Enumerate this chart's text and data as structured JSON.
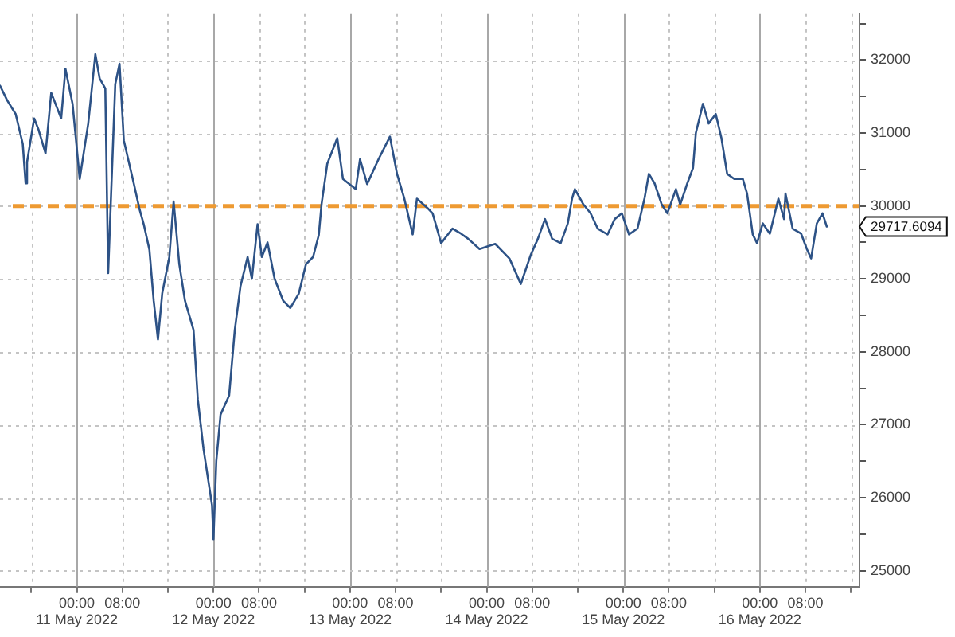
{
  "chart_data": {
    "type": "line",
    "x": [
      "2022-05-10T10:30",
      "2022-05-10T11:45",
      "2022-05-10T13:15",
      "2022-05-10T14:30",
      "2022-05-10T15:00",
      "2022-05-10T15:15",
      "2022-05-10T16:30",
      "2022-05-10T17:15",
      "2022-05-10T18:30",
      "2022-05-10T19:30",
      "2022-05-10T21:15",
      "2022-05-10T22:00",
      "2022-05-10T23:15",
      "2022-05-11T00:30",
      "2022-05-11T02:00",
      "2022-05-11T03:15",
      "2022-05-11T04:00",
      "2022-05-11T05:00",
      "2022-05-11T05:30",
      "2022-05-11T06:45",
      "2022-05-11T07:30",
      "2022-05-11T08:15",
      "2022-05-11T10:00",
      "2022-05-11T11:00",
      "2022-05-11T11:45",
      "2022-05-11T12:45",
      "2022-05-11T13:30",
      "2022-05-11T14:15",
      "2022-05-11T15:00",
      "2022-05-11T16:15",
      "2022-05-11T17:00",
      "2022-05-11T18:00",
      "2022-05-11T19:00",
      "2022-05-11T20:30",
      "2022-05-11T21:15",
      "2022-05-11T22:15",
      "2022-05-11T23:45",
      "2022-05-12T00:00",
      "2022-05-12T00:30",
      "2022-05-12T01:15",
      "2022-05-12T02:45",
      "2022-05-12T03:45",
      "2022-05-12T04:45",
      "2022-05-12T06:00",
      "2022-05-12T06:45",
      "2022-05-12T07:45",
      "2022-05-12T08:30",
      "2022-05-12T09:30",
      "2022-05-12T10:45",
      "2022-05-12T12:15",
      "2022-05-12T13:30",
      "2022-05-12T15:00",
      "2022-05-12T16:15",
      "2022-05-12T17:30",
      "2022-05-12T18:30",
      "2022-05-12T19:00",
      "2022-05-12T20:00",
      "2022-05-12T21:45",
      "2022-05-12T22:45",
      "2022-05-13T01:00",
      "2022-05-13T01:45",
      "2022-05-13T03:00",
      "2022-05-13T05:00",
      "2022-05-13T07:00",
      "2022-05-13T08:15",
      "2022-05-13T09:30",
      "2022-05-13T11:00",
      "2022-05-13T11:45",
      "2022-05-13T13:45",
      "2022-05-13T14:30",
      "2022-05-13T16:00",
      "2022-05-13T18:00",
      "2022-05-13T19:30",
      "2022-05-13T20:45",
      "2022-05-13T22:45",
      "2022-05-14T01:30",
      "2022-05-14T04:00",
      "2022-05-14T06:00",
      "2022-05-14T07:45",
      "2022-05-14T09:00",
      "2022-05-14T10:15",
      "2022-05-14T11:30",
      "2022-05-14T13:00",
      "2022-05-14T14:15",
      "2022-05-14T15:00",
      "2022-05-14T15:30",
      "2022-05-14T17:00",
      "2022-05-14T18:15",
      "2022-05-14T19:30",
      "2022-05-14T21:15",
      "2022-05-14T22:30",
      "2022-05-14T23:45",
      "2022-05-15T01:00",
      "2022-05-15T02:30",
      "2022-05-15T03:45",
      "2022-05-15T04:30",
      "2022-05-15T05:30",
      "2022-05-15T06:45",
      "2022-05-15T07:45",
      "2022-05-15T09:15",
      "2022-05-15T10:00",
      "2022-05-15T11:15",
      "2022-05-15T12:15",
      "2022-05-15T12:45",
      "2022-05-15T14:00",
      "2022-05-15T15:00",
      "2022-05-15T16:15",
      "2022-05-15T17:15",
      "2022-05-15T18:15",
      "2022-05-15T19:30",
      "2022-05-15T21:00",
      "2022-05-15T21:45",
      "2022-05-15T22:45",
      "2022-05-15T23:30",
      "2022-05-16T00:30",
      "2022-05-16T01:45",
      "2022-05-16T03:15",
      "2022-05-16T04:15",
      "2022-05-16T04:30",
      "2022-05-16T05:45",
      "2022-05-16T07:15",
      "2022-05-16T08:15",
      "2022-05-16T09:00",
      "2022-05-16T10:00",
      "2022-05-16T11:00",
      "2022-05-16T11:45"
    ],
    "series": [
      {
        "color": "#2d5286",
        "values": [
          31650,
          31450,
          31260,
          30850,
          30310,
          30600,
          31200,
          31050,
          30720,
          31550,
          31200,
          31880,
          31400,
          30370,
          31130,
          32080,
          31750,
          31610,
          29080,
          31670,
          31950,
          30900,
          30310,
          29960,
          29750,
          29400,
          28700,
          28170,
          28800,
          29300,
          30060,
          29200,
          28700,
          28300,
          27350,
          26670,
          25900,
          25430,
          26500,
          27140,
          27400,
          28300,
          28900,
          29300,
          29000,
          29750,
          29300,
          29500,
          29000,
          28700,
          28600,
          28800,
          29200,
          29300,
          29600,
          30030,
          30580,
          30930,
          30370,
          30230,
          30640,
          30300,
          30640,
          30950,
          30440,
          30110,
          29610,
          30100,
          29960,
          29900,
          29490,
          29690,
          29620,
          29550,
          29410,
          29480,
          29280,
          28930,
          29330,
          29550,
          29820,
          29550,
          29490,
          29760,
          30100,
          30230,
          30020,
          29900,
          29690,
          29610,
          29820,
          29900,
          29610,
          29690,
          30110,
          30440,
          30310,
          30020,
          29900,
          30230,
          30020,
          30310,
          30520,
          31000,
          31400,
          31130,
          31260,
          30930,
          30440,
          30370,
          30370,
          30170,
          29610,
          29490,
          29760,
          29620,
          30100,
          29820,
          30170,
          29690,
          29620,
          29410,
          29280,
          29760,
          29900,
          29717.6094
        ]
      }
    ],
    "xlim": [
      "2022-05-10T10:30",
      "2022-05-16T17:30"
    ],
    "xticks": [
      {
        "value": "2022-05-10T16:00",
        "label": null
      },
      {
        "value": "2022-05-11T00:00",
        "label": "00:00\n11 May 2022"
      },
      {
        "value": "2022-05-11T08:00",
        "label": "08:00"
      },
      {
        "value": "2022-05-11T16:00",
        "label": null
      },
      {
        "value": "2022-05-12T00:00",
        "label": "00:00\n12 May 2022"
      },
      {
        "value": "2022-05-12T08:00",
        "label": "08:00"
      },
      {
        "value": "2022-05-12T16:00",
        "label": null
      },
      {
        "value": "2022-05-13T00:00",
        "label": "00:00\n13 May 2022"
      },
      {
        "value": "2022-05-13T08:00",
        "label": "08:00"
      },
      {
        "value": "2022-05-13T16:00",
        "label": null
      },
      {
        "value": "2022-05-14T00:00",
        "label": "00:00\n14 May 2022"
      },
      {
        "value": "2022-05-14T08:00",
        "label": "08:00"
      },
      {
        "value": "2022-05-14T16:00",
        "label": null
      },
      {
        "value": "2022-05-15T00:00",
        "label": "00:00\n15 May 2022"
      },
      {
        "value": "2022-05-15T08:00",
        "label": "08:00"
      },
      {
        "value": "2022-05-15T16:00",
        "label": null
      },
      {
        "value": "2022-05-16T00:00",
        "label": "00:00\n16 May 2022"
      },
      {
        "value": "2022-05-16T08:00",
        "label": "08:00"
      },
      {
        "value": "2022-05-16T16:00",
        "label": null
      }
    ],
    "ylim": [
      24780,
      32640
    ],
    "yticks": [
      25000,
      {
        "value": 25500,
        "label": null
      },
      26000,
      {
        "value": 26500,
        "label": null
      },
      27000,
      {
        "value": 27500,
        "label": null
      },
      28000,
      {
        "value": 28500,
        "label": null
      },
      29000,
      {
        "value": 29500,
        "label": null
      },
      30000,
      {
        "value": 30500,
        "label": null
      },
      31000,
      {
        "value": 31500,
        "label": null
      },
      32000,
      {
        "value": 32500,
        "label": null
      }
    ],
    "ref_lines": [
      {
        "axis": "y",
        "value": 30000,
        "color": "#ee9a32",
        "line_style": "dashed"
      }
    ],
    "annotations": [
      "29717.6094"
    ],
    "grid": true,
    "legend": false,
    "marker": "none",
    "line_style": "solid"
  }
}
